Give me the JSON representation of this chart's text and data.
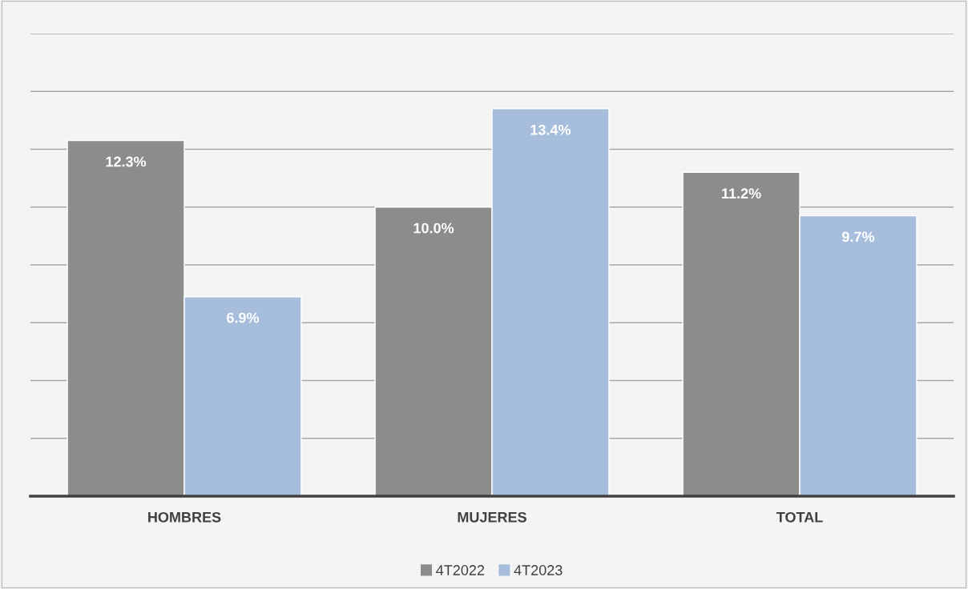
{
  "chart_data": {
    "type": "bar",
    "categories": [
      "HOMBRES",
      "MUJERES",
      "TOTAL"
    ],
    "series": [
      {
        "name": "4T2022",
        "color": "#8c8c8c",
        "values": [
          12.3,
          10.0,
          11.2
        ],
        "value_labels": [
          "12.3%",
          "10.0%",
          "11.2%"
        ]
      },
      {
        "name": "4T2023",
        "color": "#a6bddc",
        "values": [
          6.9,
          13.4,
          9.7
        ],
        "value_labels": [
          "6.9%",
          "13.4%",
          "9.7%"
        ]
      }
    ],
    "ylim": [
      0,
      16
    ],
    "yticks": [
      {
        "value": 0,
        "label": null
      },
      {
        "value": 2,
        "label": null
      },
      {
        "value": 4,
        "label": null
      },
      {
        "value": 6,
        "label": null
      },
      {
        "value": 8,
        "label": null
      },
      {
        "value": 10,
        "label": null
      },
      {
        "value": 12,
        "label": null
      },
      {
        "value": 14,
        "label": null
      },
      {
        "value": 16,
        "label": null
      }
    ],
    "grid": "y",
    "legend": "bottom",
    "tick_labels": "x"
  }
}
